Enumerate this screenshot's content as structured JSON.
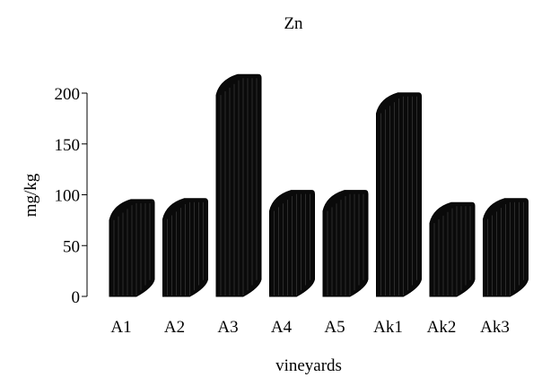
{
  "chart_data": {
    "type": "bar",
    "title": "Zn",
    "xlabel": "vineyards",
    "ylabel": "mg/kg",
    "categories": [
      "A1",
      "A2",
      "A3",
      "A4",
      "A5",
      "Ak1",
      "Ak2",
      "Ak3"
    ],
    "values": [
      75,
      76,
      198,
      84,
      84,
      180,
      72,
      76
    ],
    "ylim": [
      0,
      200
    ],
    "yticks": [
      0,
      50,
      100,
      150,
      200
    ],
    "grid": false,
    "legend": "none",
    "bar_style": "3d-cylinder",
    "bar_color": "#000000"
  }
}
